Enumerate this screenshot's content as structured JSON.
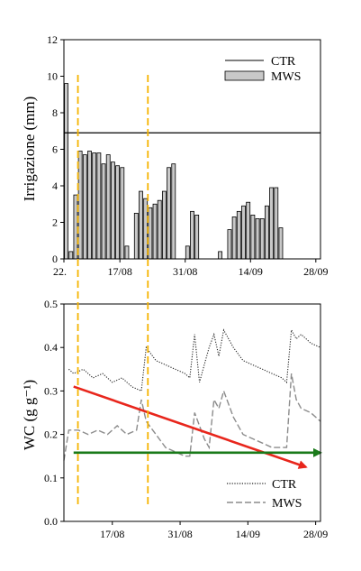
{
  "chart_data": [
    {
      "type": "bar",
      "ylabel": "Irrigazione (mm)",
      "ylim": [
        0,
        12
      ],
      "yticks": [
        0,
        2,
        4,
        6,
        8,
        10,
        12
      ],
      "xlim": [
        "2015-08-05",
        "2015-09-29"
      ],
      "x_tick_labels": [
        {
          "date": "2015-08-05",
          "label": "22."
        },
        {
          "date": "2015-08-17",
          "label": "17/08"
        },
        {
          "date": "2015-08-31",
          "label": "31/08"
        },
        {
          "date": "2015-09-14",
          "label": "14/09"
        },
        {
          "date": "2015-09-28",
          "label": "28/09"
        }
      ],
      "legend": {
        "position": "top-right",
        "entries": [
          "CTR",
          "MWS"
        ]
      },
      "series": [
        {
          "name": "CTR",
          "kind": "line",
          "constant_value": 6.9,
          "color": "#000000"
        },
        {
          "name": "MWS",
          "kind": "bar",
          "color": "#c8c8c8",
          "x": [
            "2015-08-05",
            "2015-08-06",
            "2015-08-07",
            "2015-08-08",
            "2015-08-09",
            "2015-08-10",
            "2015-08-11",
            "2015-08-12",
            "2015-08-13",
            "2015-08-14",
            "2015-08-15",
            "2015-08-16",
            "2015-08-17",
            "2015-08-18",
            "2015-08-19",
            "2015-08-20",
            "2015-08-21",
            "2015-08-22",
            "2015-08-23",
            "2015-08-24",
            "2015-08-25",
            "2015-08-26",
            "2015-08-27",
            "2015-08-28",
            "2015-08-29",
            "2015-08-30",
            "2015-08-31",
            "2015-09-01",
            "2015-09-02",
            "2015-09-03",
            "2015-09-04",
            "2015-09-05",
            "2015-09-06",
            "2015-09-07",
            "2015-09-08",
            "2015-09-09",
            "2015-09-10",
            "2015-09-11",
            "2015-09-12",
            "2015-09-13",
            "2015-09-14",
            "2015-09-15",
            "2015-09-16",
            "2015-09-17",
            "2015-09-18",
            "2015-09-19",
            "2015-09-20",
            "2015-09-21",
            "2015-09-22",
            "2015-09-23",
            "2015-09-24",
            "2015-09-25",
            "2015-09-26",
            "2015-09-27",
            "2015-09-28",
            "2015-09-29"
          ],
          "values": [
            9.6,
            0.4,
            3.5,
            5.9,
            5.7,
            5.9,
            5.8,
            5.8,
            5.2,
            5.7,
            5.3,
            5.1,
            5.0,
            0.7,
            0,
            2.5,
            3.7,
            3.3,
            2.8,
            3.0,
            3.2,
            3.7,
            5.0,
            5.2,
            0,
            0,
            0.7,
            2.6,
            2.4,
            0,
            0,
            0,
            0,
            0.4,
            0,
            1.6,
            2.3,
            2.6,
            2.9,
            3.1,
            2.4,
            2.2,
            2.2,
            2.9,
            3.9,
            3.9,
            1.7,
            0,
            0,
            0,
            0,
            0,
            0,
            0,
            0,
            0.7
          ]
        }
      ],
      "annotations": [
        {
          "type": "vline",
          "style": "dashed",
          "color": "#f5b400",
          "date": "2015-08-08"
        },
        {
          "type": "vline",
          "style": "dashed",
          "color": "#f5b400",
          "date": "2015-08-23"
        }
      ]
    },
    {
      "type": "line",
      "ylabel": "WC (g g⁻¹)",
      "ylim": [
        0.0,
        0.5
      ],
      "yticks": [
        0.0,
        0.1,
        0.2,
        0.3,
        0.4,
        0.5
      ],
      "xlim": [
        "2015-08-07",
        "2015-09-29"
      ],
      "x_tick_labels": [
        {
          "date": "2015-08-17",
          "label": "17/08"
        },
        {
          "date": "2015-08-31",
          "label": "31/08"
        },
        {
          "date": "2015-09-14",
          "label": "14/09"
        },
        {
          "date": "2015-09-28",
          "label": "28/09"
        }
      ],
      "legend": {
        "position": "bottom-right",
        "entries": [
          "CTR",
          "MWS"
        ]
      },
      "series": [
        {
          "name": "CTR",
          "style": "dotted",
          "color": "#222222",
          "x": [
            "2015-08-08",
            "2015-08-09",
            "2015-08-11",
            "2015-08-13",
            "2015-08-15",
            "2015-08-17",
            "2015-08-19",
            "2015-08-21",
            "2015-08-23",
            "2015-08-24",
            "2015-08-26",
            "2015-08-28",
            "2015-08-30",
            "2015-09-01",
            "2015-09-02",
            "2015-09-03",
            "2015-09-04",
            "2015-09-05",
            "2015-09-06",
            "2015-09-07",
            "2015-09-08",
            "2015-09-09",
            "2015-09-11",
            "2015-09-13",
            "2015-09-15",
            "2015-09-17",
            "2015-09-19",
            "2015-09-21",
            "2015-09-22",
            "2015-09-23",
            "2015-09-24",
            "2015-09-25",
            "2015-09-27",
            "2015-09-29"
          ],
          "values": [
            0.35,
            0.34,
            0.35,
            0.33,
            0.34,
            0.32,
            0.33,
            0.31,
            0.3,
            0.4,
            0.37,
            0.36,
            0.35,
            0.34,
            0.33,
            0.43,
            0.32,
            0.36,
            0.4,
            0.43,
            0.38,
            0.44,
            0.4,
            0.37,
            0.36,
            0.35,
            0.34,
            0.33,
            0.32,
            0.44,
            0.42,
            0.43,
            0.41,
            0.4
          ]
        },
        {
          "name": "MWS",
          "style": "dashed",
          "color": "#8c8c8c",
          "x": [
            "2015-08-07",
            "2015-08-08",
            "2015-08-10",
            "2015-08-12",
            "2015-08-14",
            "2015-08-16",
            "2015-08-18",
            "2015-08-20",
            "2015-08-22",
            "2015-08-23",
            "2015-08-24",
            "2015-08-26",
            "2015-08-28",
            "2015-08-30",
            "2015-09-01",
            "2015-09-02",
            "2015-09-03",
            "2015-09-04",
            "2015-09-05",
            "2015-09-06",
            "2015-09-07",
            "2015-09-08",
            "2015-09-09",
            "2015-09-11",
            "2015-09-13",
            "2015-09-15",
            "2015-09-17",
            "2015-09-19",
            "2015-09-21",
            "2015-09-22",
            "2015-09-23",
            "2015-09-24",
            "2015-09-25",
            "2015-09-27",
            "2015-09-29"
          ],
          "values": [
            0.14,
            0.21,
            0.21,
            0.2,
            0.21,
            0.2,
            0.22,
            0.2,
            0.21,
            0.28,
            0.23,
            0.2,
            0.17,
            0.16,
            0.15,
            0.15,
            0.25,
            0.22,
            0.19,
            0.17,
            0.28,
            0.26,
            0.3,
            0.24,
            0.2,
            0.19,
            0.18,
            0.17,
            0.17,
            0.17,
            0.34,
            0.28,
            0.26,
            0.25,
            0.23
          ]
        }
      ],
      "annotations": [
        {
          "type": "arrow",
          "color": "#e8261c",
          "from": {
            "date": "2015-08-09",
            "value": 0.31
          },
          "to": {
            "date": "2015-09-26",
            "value": 0.125
          }
        },
        {
          "type": "arrow",
          "color": "#1a7a1a",
          "from": {
            "date": "2015-08-09",
            "value": 0.158
          },
          "to": {
            "date": "2015-09-29",
            "value": 0.158
          }
        },
        {
          "type": "vline",
          "style": "dashed",
          "color": "#f5b400",
          "date": "2015-08-08"
        },
        {
          "type": "vline",
          "style": "dashed",
          "color": "#f5b400",
          "date": "2015-08-23"
        }
      ]
    }
  ]
}
